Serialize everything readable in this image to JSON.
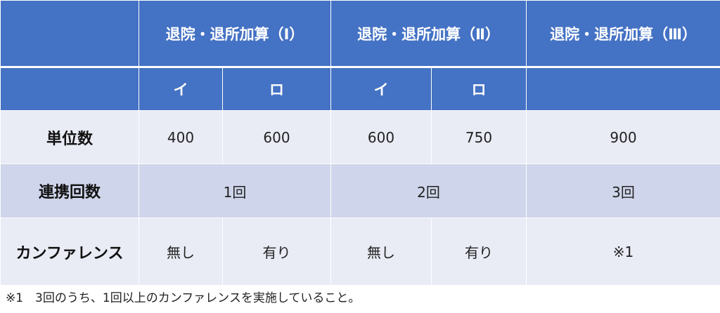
{
  "colors": {
    "header": "#4472c4",
    "row_light": "#e9ebf5",
    "row_dark": "#cfd5ea"
  },
  "header": {
    "groups": [
      "退院・退所加算（Ⅰ）",
      "退院・退所加算（Ⅱ）",
      "退院・退所加算（Ⅲ）"
    ],
    "subs": [
      "イ",
      "ロ",
      "イ",
      "ロ"
    ]
  },
  "rows": {
    "units": {
      "label": "単位数",
      "values": [
        "400",
        "600",
        "600",
        "750",
        "900"
      ]
    },
    "coop": {
      "label": "連携回数",
      "values": [
        "1回",
        "2回",
        "3回"
      ]
    },
    "conf": {
      "label": "カンファレンス",
      "values": [
        "無し",
        "有り",
        "無し",
        "有り",
        "※1"
      ]
    }
  },
  "footnote": "※1　3回のうち、1回以上のカンファレンスを実施していること。"
}
